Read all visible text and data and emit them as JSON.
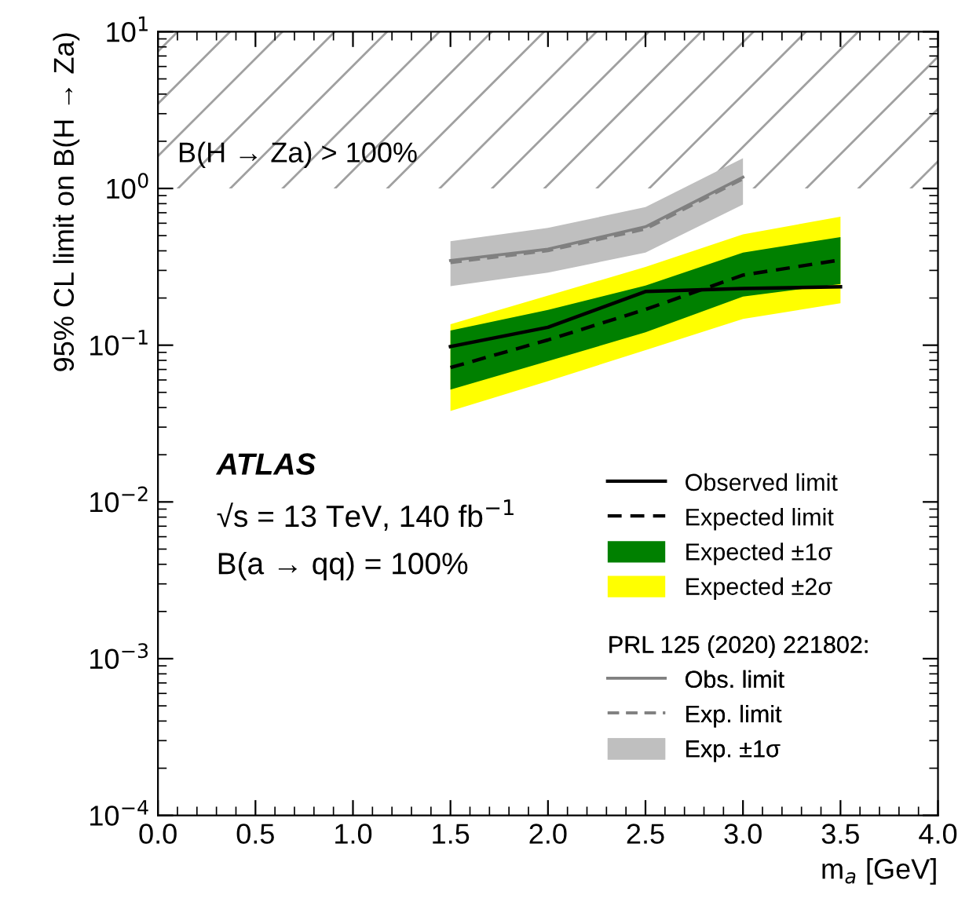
{
  "chart_data": {
    "type": "line",
    "xlabel": "m$_{a}$ [GeV]",
    "ylabel": "95% CL limit on B(H → Za)",
    "x": [
      1.5,
      2.0,
      2.5,
      3.0,
      3.5
    ],
    "series": [
      {
        "name": "Observed limit",
        "color": "#000000",
        "line_style": "solid",
        "values": [
          0.098,
          0.13,
          0.22,
          0.23,
          0.236
        ]
      },
      {
        "name": "Expected limit",
        "color": "#000000",
        "line_style": "dashed",
        "values": [
          0.072,
          0.108,
          0.169,
          0.28,
          0.35
        ]
      },
      {
        "name": "Expected ±1σ",
        "color": "#008000",
        "values": [
          null,
          null,
          null,
          null,
          null
        ],
        "lower": [
          0.052,
          0.079,
          0.121,
          0.204,
          0.246
        ],
        "upper": [
          0.124,
          0.168,
          0.24,
          0.39,
          0.49
        ]
      },
      {
        "name": "Expected ±2σ",
        "color": "#ffff00",
        "values": [
          null,
          null,
          null,
          null,
          null
        ],
        "lower": [
          0.038,
          0.059,
          0.093,
          0.147,
          0.185
        ],
        "upper": [
          0.136,
          0.207,
          0.316,
          0.51,
          0.66
        ]
      },
      {
        "name": "Obs. limit",
        "color": "#808080",
        "line_style": "solid",
        "x": [
          1.5,
          2.0,
          2.5,
          3.0
        ],
        "values": [
          0.347,
          0.41,
          0.57,
          1.18
        ]
      },
      {
        "name": "Exp. limit",
        "color": "#808080",
        "line_style": "dashed",
        "x": [
          1.5,
          2.0,
          2.5,
          3.0
        ],
        "values": [
          0.336,
          0.4,
          0.55,
          1.15
        ]
      },
      {
        "name": "Exp. ±1σ",
        "color": "#bfbfbf",
        "x": [
          1.5,
          2.0,
          2.5,
          3.0
        ],
        "values": [
          null,
          null,
          null,
          null
        ],
        "lower": [
          0.238,
          0.29,
          0.39,
          0.79
        ],
        "upper": [
          0.46,
          0.56,
          0.76,
          1.56
        ]
      }
    ],
    "legend_title": "PRL 125 (2020) 221802:",
    "legend": "bottom right",
    "bands": [
      {
        "axis": "y",
        "from": 1,
        "to": 10,
        "label": "B(H → Za) > 100%",
        "color": "#a0a0a0"
      }
    ],
    "annotations": [
      "ATLAS",
      "√s = 13 TeV, 140 fb$^{−1}$",
      "B(a → qq) = 100%"
    ],
    "log": "y",
    "xlim": [
      0.0,
      4.0
    ],
    "xticks": [
      {
        "value": 0.0,
        "label": "0.0"
      },
      0.5,
      {
        "value": 1.0,
        "label": "1.0"
      },
      1.5,
      {
        "value": 2.0,
        "label": "2.0"
      },
      2.5,
      {
        "value": 3.0,
        "label": "3.0"
      },
      3.5,
      {
        "value": 4.0,
        "label": "4.0"
      }
    ],
    "ylim": [
      0.0001,
      10
    ],
    "yticks": [
      {
        "value": 0.0001,
        "label": "10$^{−4}$"
      },
      {
        "value": 0.001,
        "label": "10$^{−3}$"
      },
      {
        "value": 0.01,
        "label": "10$^{−2}$"
      },
      {
        "value": 0.1,
        "label": "10$^{−1}$"
      },
      {
        "value": 1,
        "label": "10$^{0}$"
      },
      {
        "value": 10,
        "label": "10$^{1}$"
      }
    ],
    "grid": false
  }
}
